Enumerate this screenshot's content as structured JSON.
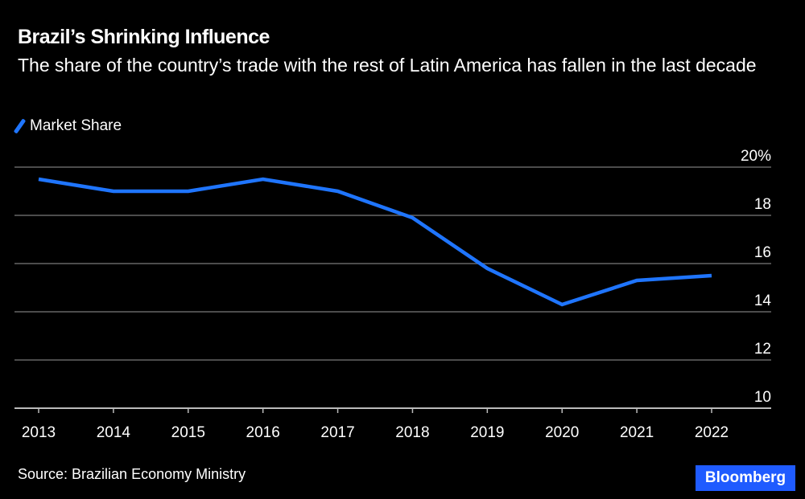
{
  "chart_data": {
    "type": "line",
    "title": "Brazil’s Shrinking Influence",
    "subtitle": "The share of the country’s trade with the rest of Latin America has fallen in the last decade",
    "x": [
      "2013",
      "2014",
      "2015",
      "2016",
      "2017",
      "2018",
      "2019",
      "2020",
      "2021",
      "2022"
    ],
    "series": [
      {
        "name": "Market Share",
        "values": [
          19.5,
          19.0,
          19.0,
          19.5,
          19.0,
          17.9,
          15.8,
          14.3,
          15.3,
          15.5
        ],
        "color": "#1f75fe"
      }
    ],
    "ylim": [
      10,
      20
    ],
    "yticks": [
      10,
      12,
      14,
      16,
      18,
      20
    ],
    "ytick_labels": [
      "10",
      "12",
      "14",
      "16",
      "18",
      "20%"
    ],
    "y_axis_side": "right",
    "grid": true,
    "legend": "top-left"
  },
  "source": "Source: Brazilian Economy Ministry",
  "logo": "Bloomberg"
}
